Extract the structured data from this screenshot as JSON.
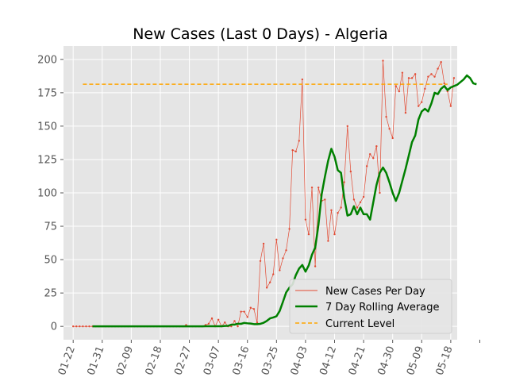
{
  "chart_data": {
    "type": "line",
    "title": "New Cases (Last 0 Days) - Algeria",
    "xlabel": "",
    "ylabel": "",
    "grid": true,
    "legend_position": "bottom-right",
    "x_tick_labels": [
      "01-22",
      "01-31",
      "02-09",
      "02-18",
      "02-27",
      "03-07",
      "03-16",
      "03-25",
      "04-03",
      "04-12",
      "04-21",
      "04-30",
      "05-09",
      "05-18"
    ],
    "y_ticks": [
      0,
      25,
      50,
      75,
      100,
      125,
      150,
      175,
      200
    ],
    "ylim": [
      -10,
      210
    ],
    "xlim_days": [
      -3,
      119
    ],
    "current_level": 181.4,
    "colors": {
      "daily": "#e24a33",
      "rolling": "#008000",
      "current": "#ffa500",
      "plot_bg": "#e5e5e5",
      "grid": "#ffffff",
      "tick_text": "#555555"
    },
    "series": [
      {
        "name": "New Cases Per Day",
        "values": [
          0,
          0,
          0,
          0,
          0,
          0,
          0,
          0,
          0,
          0,
          0,
          0,
          0,
          0,
          0,
          0,
          0,
          0,
          0,
          0,
          0,
          0,
          0,
          0,
          0,
          0,
          0,
          0,
          0,
          0,
          0,
          0,
          0,
          0,
          0,
          1,
          0,
          0,
          0,
          0,
          0,
          1,
          2,
          6,
          0,
          5,
          0,
          3,
          0,
          0,
          4,
          0,
          11,
          11,
          7,
          14,
          13,
          3,
          49,
          62,
          29,
          33,
          39,
          65,
          42,
          51,
          57,
          73,
          132,
          131,
          139,
          185,
          80,
          69,
          104,
          45,
          104,
          94,
          95,
          64,
          87,
          69,
          85,
          89,
          108,
          150,
          116,
          95,
          89,
          93,
          97,
          120,
          129,
          126,
          135,
          100,
          199,
          157,
          148,
          141,
          180,
          176,
          190,
          160,
          186,
          186,
          189,
          165,
          168,
          178,
          187,
          189,
          187,
          193,
          198,
          182,
          176,
          165,
          186
        ]
      },
      {
        "name": "7 Day Rolling Average",
        "values": [
          0,
          0,
          0,
          0,
          0,
          0,
          0,
          0,
          0,
          0,
          0,
          0,
          0,
          0,
          0,
          0,
          0,
          0,
          0,
          0,
          0,
          0,
          0,
          0,
          0,
          0,
          0,
          0,
          0,
          0,
          0,
          0,
          0,
          0,
          0,
          0.1,
          0.1,
          0.1,
          0.1,
          0.1,
          0.1,
          0.3,
          0.4,
          1.3,
          1.3,
          2,
          1.9,
          2.6,
          2.3,
          2.1,
          1.7,
          1.7,
          1.9,
          2.7,
          4.1,
          6,
          6.7,
          7.6,
          11.6,
          18.4,
          25.4,
          29,
          31.5,
          38.4,
          43.3,
          46,
          41,
          45.7,
          53.7,
          59,
          76,
          99,
          112,
          124,
          133,
          127,
          117,
          115,
          96,
          83,
          84,
          90,
          84,
          89,
          84,
          84,
          80,
          93,
          106,
          115,
          119,
          115,
          108,
          100,
          94,
          100,
          109,
          118,
          128,
          138,
          143,
          155,
          161,
          163,
          161,
          167,
          175,
          174,
          178,
          180,
          177,
          179,
          180,
          181,
          183,
          185,
          188,
          186,
          182,
          181.4
        ]
      },
      {
        "name": "Current Level",
        "values": []
      }
    ]
  }
}
